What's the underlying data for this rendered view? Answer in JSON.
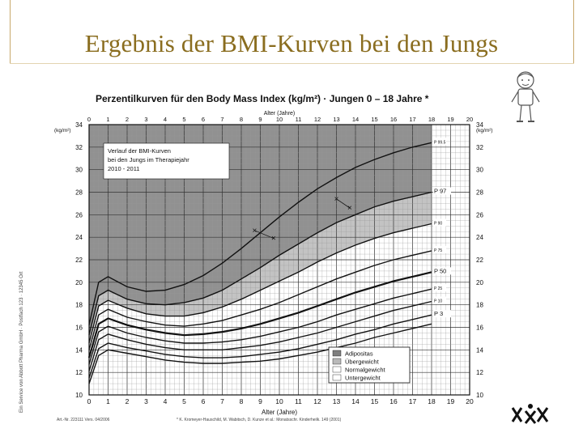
{
  "slide": {
    "title": "Ergebnis der BMI-Kurven bei den Jungs"
  },
  "chart_data": {
    "type": "line",
    "title": "Perzentilkurven für den Body Mass Index (kg/m²) · Jungen 0 – 18 Jahre *",
    "xlabel_top": "Alter (Jahre)",
    "xlabel_bottom": "Alter (Jahre)",
    "ylabel_left": "(kg/m²)",
    "ylabel_right": "(kg/m²)",
    "xlim": [
      0,
      20
    ],
    "ylim": [
      10,
      34
    ],
    "x_ticks": [
      0,
      1,
      2,
      3,
      4,
      5,
      6,
      7,
      8,
      9,
      10,
      11,
      12,
      13,
      14,
      15,
      16,
      17,
      18,
      19,
      20
    ],
    "y_ticks": [
      10,
      12,
      14,
      16,
      18,
      20,
      22,
      24,
      26,
      28,
      30,
      32,
      34
    ],
    "grid": true,
    "x": [
      0,
      0.5,
      1,
      2,
      3,
      4,
      5,
      6,
      7,
      8,
      9,
      10,
      11,
      12,
      13,
      14,
      15,
      16,
      17,
      18
    ],
    "series": [
      {
        "name": "P 99.5",
        "values": [
          16.2,
          20.0,
          20.5,
          19.6,
          19.2,
          19.3,
          19.8,
          20.6,
          21.7,
          23.0,
          24.4,
          25.8,
          27.1,
          28.3,
          29.3,
          30.2,
          30.9,
          31.5,
          32.0,
          32.4
        ]
      },
      {
        "name": "P 97",
        "values": [
          15.3,
          18.8,
          19.3,
          18.5,
          18.1,
          18.0,
          18.2,
          18.6,
          19.3,
          20.3,
          21.3,
          22.4,
          23.4,
          24.4,
          25.3,
          26.0,
          26.7,
          27.2,
          27.6,
          28.0
        ]
      },
      {
        "name": "P 90",
        "values": [
          14.6,
          17.9,
          18.4,
          17.7,
          17.2,
          17.0,
          17.0,
          17.3,
          17.8,
          18.5,
          19.3,
          20.1,
          20.9,
          21.8,
          22.6,
          23.3,
          23.9,
          24.4,
          24.8,
          25.2
        ]
      },
      {
        "name": "P 75",
        "values": [
          14.0,
          17.1,
          17.6,
          16.9,
          16.5,
          16.2,
          16.1,
          16.3,
          16.6,
          17.1,
          17.6,
          18.2,
          18.9,
          19.6,
          20.3,
          20.9,
          21.5,
          22.0,
          22.4,
          22.8
        ]
      },
      {
        "name": "P 50",
        "values": [
          13.3,
          16.3,
          16.8,
          16.2,
          15.8,
          15.5,
          15.3,
          15.4,
          15.6,
          15.9,
          16.3,
          16.8,
          17.3,
          17.9,
          18.5,
          19.1,
          19.6,
          20.1,
          20.5,
          20.9
        ]
      },
      {
        "name": "P 25",
        "values": [
          12.7,
          15.6,
          16.1,
          15.5,
          15.1,
          14.8,
          14.6,
          14.6,
          14.7,
          14.9,
          15.2,
          15.6,
          16.0,
          16.5,
          17.1,
          17.6,
          18.1,
          18.6,
          19.0,
          19.4
        ]
      },
      {
        "name": "P 10",
        "values": [
          12.1,
          14.9,
          15.4,
          14.9,
          14.5,
          14.2,
          14.0,
          14.0,
          14.0,
          14.2,
          14.4,
          14.7,
          15.1,
          15.5,
          16.0,
          16.5,
          17.0,
          17.5,
          17.9,
          18.3
        ]
      },
      {
        "name": "P 3",
        "values": [
          11.5,
          14.1,
          14.6,
          14.2,
          13.9,
          13.6,
          13.4,
          13.3,
          13.3,
          13.4,
          13.6,
          13.8,
          14.1,
          14.5,
          14.9,
          15.4,
          15.8,
          16.3,
          16.7,
          17.1
        ]
      },
      {
        "name": "",
        "values": [
          11.0,
          13.5,
          14.0,
          13.7,
          13.4,
          13.1,
          12.9,
          12.8,
          12.8,
          12.9,
          13.0,
          13.2,
          13.5,
          13.8,
          14.2,
          14.6,
          15.1,
          15.5,
          15.9,
          16.3
        ]
      }
    ],
    "curve_labels": [
      "P 99.5",
      "P 97",
      "P 90",
      "P 75",
      "P 50",
      "P 25",
      "P 10",
      "P 3"
    ],
    "annotation": {
      "lines": [
        "Verlauf der BMI-Kurven",
        "bei den Jungs im Therapiejahr",
        "2010 - 2011"
      ],
      "x": [
        8.7,
        9.7,
        13.0,
        13.7
      ],
      "y": [
        24.6,
        23.9,
        27.4,
        26.6
      ]
    },
    "legend": {
      "placement": "bottom-right",
      "entries": [
        "Adipositas",
        "Übergewicht",
        "Normalgewicht",
        "Untergewicht"
      ]
    },
    "footnote": "* K. Kromeyer-Hauschild, M. Wabitsch, D. Kunze et al.: Monatsschr. Kinderheilk. 149 (2001)",
    "article_no": "Art.-Nr. 223111 Vers. 04/2006",
    "side_text": "Ein Service von Abbott Pharma GmbH · Postfach 123 · 12345 Ort",
    "colors": {
      "adipositas": "#7e7e7e",
      "uebergewicht": "#b9b9b9",
      "normalgewicht": "#ffffff",
      "untergewicht": "#ffffff",
      "title": "#8a6d1f"
    }
  }
}
